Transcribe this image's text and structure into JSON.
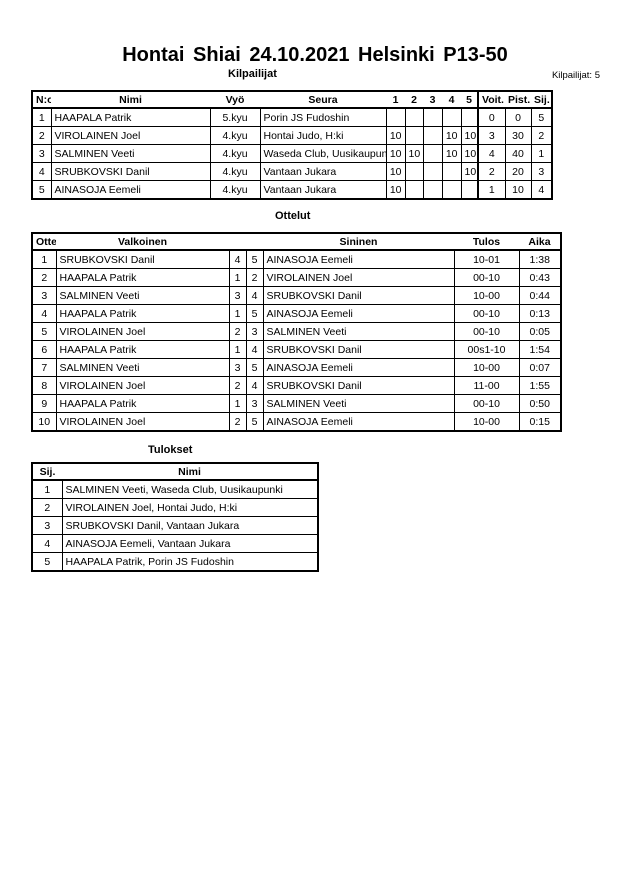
{
  "title": "Hontai Shiai  24.10.2021  Helsinki   P13-50",
  "competitors": {
    "heading": "Kilpailijat",
    "count_label": "Kilpailijat: 5",
    "columns": [
      "N:o",
      "Nimi",
      "Vyö",
      "Seura",
      "1",
      "2",
      "3",
      "4",
      "5",
      "Voit.",
      "Pist.",
      "Sij."
    ],
    "rows": [
      [
        "1",
        "HAAPALA Patrik",
        "5.kyu",
        "Porin JS Fudoshin",
        "",
        "",
        "",
        "",
        "",
        "0",
        "0",
        "5"
      ],
      [
        "2",
        "VIROLAINEN Joel",
        "4.kyu",
        "Hontai Judo, H:ki",
        "10",
        "",
        "",
        "10",
        "10",
        "3",
        "30",
        "2"
      ],
      [
        "3",
        "SALMINEN Veeti",
        "4.kyu",
        "Waseda Club, Uusikaupunki",
        "10",
        "10",
        "",
        "10",
        "10",
        "4",
        "40",
        "1"
      ],
      [
        "4",
        "SRUBKOVSKI Danil",
        "4.kyu",
        "Vantaan Jukara",
        "10",
        "",
        "",
        "",
        "10",
        "2",
        "20",
        "3"
      ],
      [
        "5",
        "AINASOJA Eemeli",
        "4.kyu",
        "Vantaan Jukara",
        "10",
        "",
        "",
        "",
        "",
        "1",
        "10",
        "4"
      ]
    ]
  },
  "matches": {
    "heading": "Ottelut",
    "columns": [
      "Ottelu",
      "Valkoinen",
      "",
      "",
      "Sininen",
      "Tulos",
      "Aika"
    ],
    "rows": [
      [
        "1",
        "SRUBKOVSKI Danil",
        "4",
        "5",
        "AINASOJA Eemeli",
        "10-01",
        "1:38"
      ],
      [
        "2",
        "HAAPALA Patrik",
        "1",
        "2",
        "VIROLAINEN Joel",
        "00-10",
        "0:43"
      ],
      [
        "3",
        "SALMINEN Veeti",
        "3",
        "4",
        "SRUBKOVSKI Danil",
        "10-00",
        "0:44"
      ],
      [
        "4",
        "HAAPALA Patrik",
        "1",
        "5",
        "AINASOJA Eemeli",
        "00-10",
        "0:13"
      ],
      [
        "5",
        "VIROLAINEN Joel",
        "2",
        "3",
        "SALMINEN Veeti",
        "00-10",
        "0:05"
      ],
      [
        "6",
        "HAAPALA Patrik",
        "1",
        "4",
        "SRUBKOVSKI Danil",
        "00s1-10",
        "1:54"
      ],
      [
        "7",
        "SALMINEN Veeti",
        "3",
        "5",
        "AINASOJA Eemeli",
        "10-00",
        "0:07"
      ],
      [
        "8",
        "VIROLAINEN Joel",
        "2",
        "4",
        "SRUBKOVSKI Danil",
        "11-00",
        "1:55"
      ],
      [
        "9",
        "HAAPALA Patrik",
        "1",
        "3",
        "SALMINEN Veeti",
        "00-10",
        "0:50"
      ],
      [
        "10",
        "VIROLAINEN Joel",
        "2",
        "5",
        "AINASOJA Eemeli",
        "10-00",
        "0:15"
      ]
    ]
  },
  "results": {
    "heading": "Tulokset",
    "columns": [
      "Sij.",
      "Nimi"
    ],
    "rows": [
      [
        "1",
        "SALMINEN Veeti, Waseda Club, Uusikaupunki"
      ],
      [
        "2",
        "VIROLAINEN Joel, Hontai Judo, H:ki"
      ],
      [
        "3",
        "SRUBKOVSKI Danil, Vantaan Jukara"
      ],
      [
        "4",
        "AINASOJA Eemeli, Vantaan Jukara"
      ],
      [
        "5",
        "HAAPALA Patrik, Porin JS Fudoshin"
      ]
    ]
  }
}
